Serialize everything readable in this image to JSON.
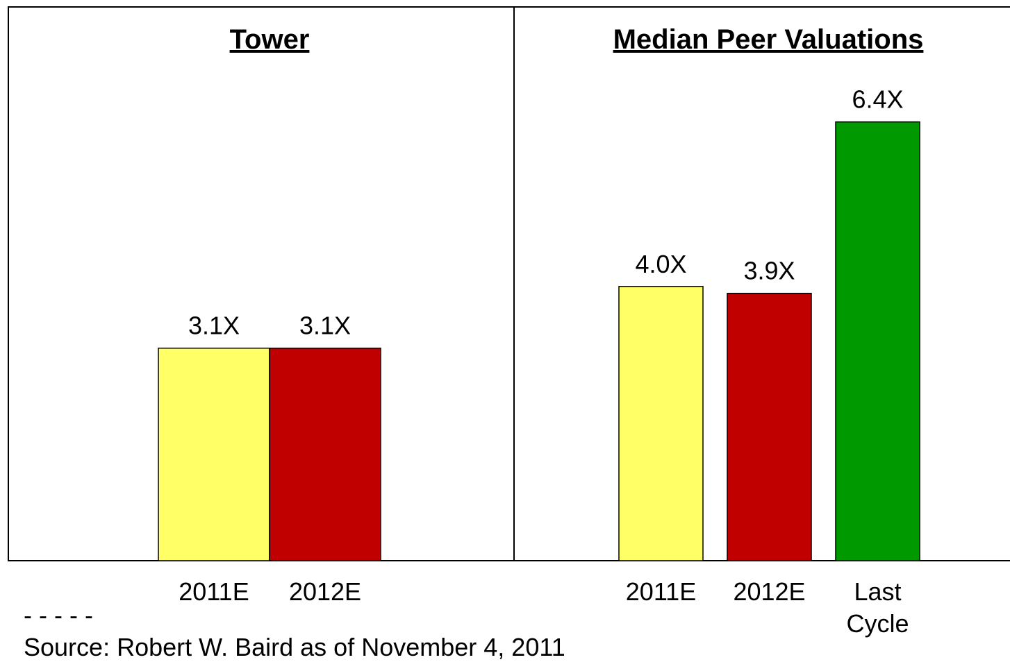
{
  "chart_data": [
    {
      "type": "bar",
      "title": "Tower",
      "categories": [
        "2011E",
        "2012E"
      ],
      "values": [
        3.1,
        3.1
      ],
      "value_labels": [
        "3.1X",
        "3.1X"
      ],
      "colors": [
        "#ffff66",
        "#c00000"
      ]
    },
    {
      "type": "bar",
      "title": "Median Peer Valuations",
      "categories": [
        "2011E",
        "2012E",
        "Last Cycle"
      ],
      "values": [
        4.0,
        3.9,
        6.4
      ],
      "value_labels": [
        "4.0X",
        "3.9X",
        "6.4X"
      ],
      "colors": [
        "#ffff66",
        "#c00000",
        "#009900"
      ]
    }
  ],
  "separator": "- - - - -",
  "source": "Source: Robert W. Baird as of November 4, 2011"
}
